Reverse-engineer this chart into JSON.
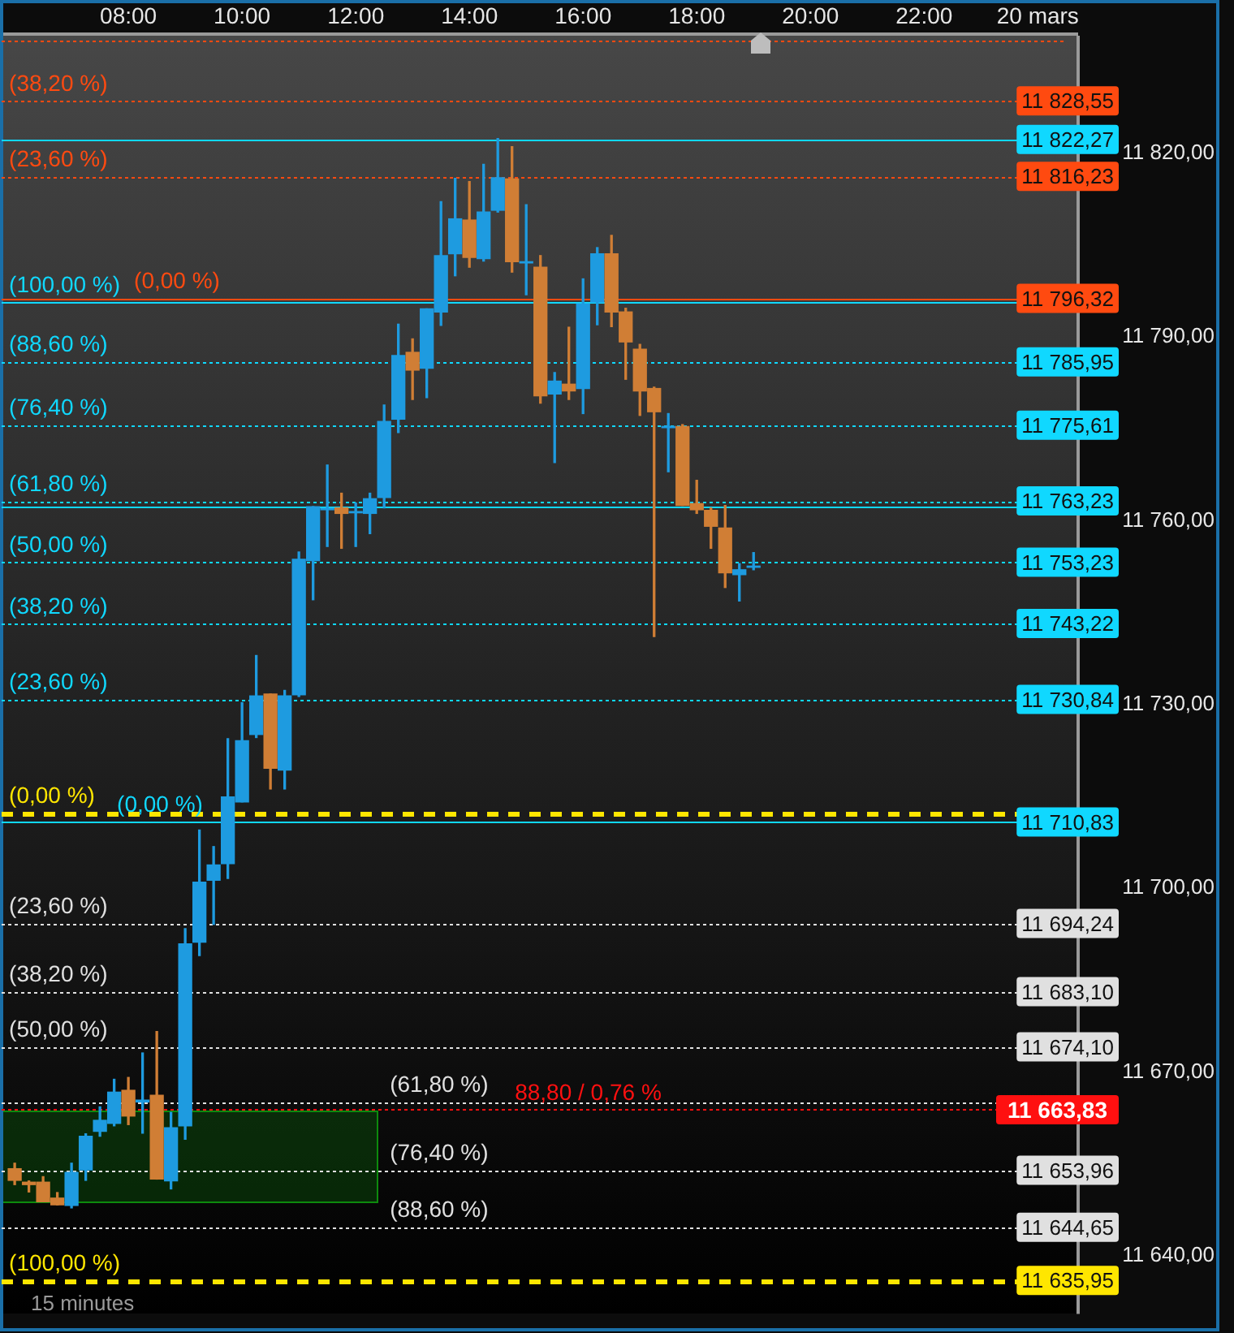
{
  "chart_data": {
    "type": "candlestick",
    "x": [
      6,
      6.25,
      6.5,
      6.75,
      7,
      7.25,
      7.5,
      7.75,
      8,
      8.25,
      8.5,
      8.75,
      9,
      9.25,
      9.5,
      9.75,
      10,
      10.25,
      10.5,
      10.75,
      11,
      11.25,
      11.5,
      11.75,
      12,
      12.25,
      12.5,
      12.75,
      13,
      13.25,
      13.5,
      13.75,
      14,
      14.25,
      14.5,
      14.75,
      15,
      15.25,
      15.5,
      15.75,
      16,
      16.25,
      16.5,
      16.75,
      17,
      17.25,
      17.5,
      17.75,
      18,
      18.25,
      18.5,
      18.75,
      19
    ],
    "ohlc": [
      [
        11654.2,
        11655.1,
        11651.6,
        11652.3
      ],
      [
        11652.0,
        11652.2,
        11650.4,
        11651.6
      ],
      [
        11652.0,
        11652.9,
        11648.8,
        11648.8
      ],
      [
        11649.4,
        11650.3,
        11648.3,
        11648.3
      ],
      [
        11648.2,
        11655.1,
        11647.8,
        11653.6
      ],
      [
        11654.0,
        11659.9,
        11652.3,
        11659.5
      ],
      [
        11660.3,
        11664.3,
        11659.5,
        11662.1
      ],
      [
        11661.6,
        11668.8,
        11661.2,
        11666.7
      ],
      [
        11667.0,
        11669.1,
        11661.4,
        11662.8
      ],
      [
        11665.1,
        11673.1,
        11660.0,
        11665.4
      ],
      [
        11666.2,
        11676.6,
        11652.5,
        11652.5
      ],
      [
        11652.2,
        11663.4,
        11650.9,
        11660.9
      ],
      [
        11661.2,
        11693.4,
        11659.0,
        11690.9
      ],
      [
        11691.2,
        11709.5,
        11689.0,
        11701.0
      ],
      [
        11701.3,
        11706.8,
        11694.1,
        11703.8
      ],
      [
        11704.0,
        11724.4,
        11701.6,
        11714.9
      ],
      [
        11714.1,
        11730.3,
        11714.1,
        11724.1
      ],
      [
        11725.1,
        11738.0,
        11724.6,
        11731.4
      ],
      [
        11731.7,
        11731.7,
        11716.2,
        11719.6
      ],
      [
        11719.3,
        11732.3,
        11716.2,
        11731.4
      ],
      [
        11731.6,
        11754.9,
        11731.3,
        11753.7
      ],
      [
        11753.5,
        11762.3,
        11747.1,
        11762.3
      ],
      [
        11761.8,
        11769.1,
        11755.8,
        11762.0
      ],
      [
        11762.1,
        11764.5,
        11755.5,
        11761.2
      ],
      [
        11761.3,
        11762.9,
        11755.8,
        11761.5
      ],
      [
        11761.2,
        11764.5,
        11757.9,
        11763.6
      ],
      [
        11763.8,
        11778.9,
        11762.1,
        11776.2
      ],
      [
        11776.6,
        11792.1,
        11774.4,
        11787.0
      ],
      [
        11787.5,
        11789.7,
        11779.8,
        11784.6
      ],
      [
        11784.9,
        11794.6,
        11780.1,
        11794.6
      ],
      [
        11794.1,
        11812.1,
        11791.9,
        11803.3
      ],
      [
        11803.6,
        11815.9,
        11800.0,
        11809.3
      ],
      [
        11809.1,
        11815.4,
        11801.4,
        11803.0
      ],
      [
        11802.8,
        11818.2,
        11802.4,
        11810.4
      ],
      [
        11810.7,
        11822.4,
        11810.4,
        11816.0
      ],
      [
        11815.8,
        11821.1,
        11800.6,
        11802.3
      ],
      [
        11802.1,
        11811.6,
        11796.9,
        11802.3
      ],
      [
        11801.4,
        11803.3,
        11779.2,
        11780.4
      ],
      [
        11780.7,
        11784.2,
        11769.5,
        11782.8
      ],
      [
        11782.3,
        11791.6,
        11779.8,
        11781.2
      ],
      [
        11781.6,
        11799.5,
        11777.5,
        11795.4
      ],
      [
        11795.7,
        11804.6,
        11792.0,
        11803.6
      ],
      [
        11803.6,
        11806.6,
        11791.7,
        11794.1
      ],
      [
        11794.1,
        11794.7,
        11783.1,
        11789.2
      ],
      [
        11788.0,
        11788.8,
        11777.2,
        11781.2
      ],
      [
        11781.6,
        11781.8,
        11741.1,
        11777.8
      ],
      [
        11775.2,
        11777.5,
        11768.0,
        11775.4
      ],
      [
        11775.4,
        11775.7,
        11762.5,
        11762.5
      ],
      [
        11762.8,
        11766.6,
        11761.2,
        11761.8
      ],
      [
        11761.7,
        11762.1,
        11755.5,
        11759.1
      ],
      [
        11758.8,
        11762.5,
        11749.1,
        11751.5
      ],
      [
        11751.2,
        11753.0,
        11746.9,
        11752.0
      ],
      [
        11752.4,
        11754.8,
        11752.0,
        11752.6
      ]
    ],
    "colors": [
      "#d07e35",
      "#d07e35",
      "#d07e35",
      "#d07e35",
      "#1e9be0",
      "#1e9be0",
      "#1e9be0",
      "#1e9be0",
      "#d07e35",
      "#1e9be0",
      "#d07e35",
      "#1e9be0",
      "#1e9be0",
      "#1e9be0",
      "#1e9be0",
      "#1e9be0",
      "#1e9be0",
      "#1e9be0",
      "#d07e35",
      "#1e9be0",
      "#1e9be0",
      "#1e9be0",
      "#1e9be0",
      "#d07e35",
      "#1e9be0",
      "#1e9be0",
      "#1e9be0",
      "#1e9be0",
      "#d07e35",
      "#1e9be0",
      "#1e9be0",
      "#1e9be0",
      "#d07e35",
      "#1e9be0",
      "#1e9be0",
      "#d07e35",
      "#1e9be0",
      "#d07e35",
      "#1e9be0",
      "#d07e35",
      "#1e9be0",
      "#1e9be0",
      "#d07e35",
      "#d07e35",
      "#d07e35",
      "#d07e35",
      "#1e9be0",
      "#d07e35",
      "#d07e35",
      "#d07e35",
      "#d07e35",
      "#1e9be0",
      "#1e9be0"
    ],
    "xlim": [
      5.77,
      24.71
    ],
    "xticks": [
      {
        "value": 8,
        "label": "08:00"
      },
      {
        "value": 10,
        "label": "10:00"
      },
      {
        "value": 12,
        "label": "12:00"
      },
      {
        "value": 14,
        "label": "14:00"
      },
      {
        "value": 16,
        "label": "16:00"
      },
      {
        "value": 18,
        "label": "18:00"
      },
      {
        "value": 20,
        "label": "20:00"
      },
      {
        "value": 22,
        "label": "22:00"
      },
      {
        "value": 24,
        "label": "20 mars"
      }
    ],
    "ylim": [
      11630.5,
      11839.2
    ],
    "yticks": [
      {
        "value": 11640,
        "label": "11 640,00"
      },
      {
        "value": 11670,
        "label": "11 670,00"
      },
      {
        "value": 11700,
        "label": "11 700,00"
      },
      {
        "value": 11730,
        "label": "11 730,00"
      },
      {
        "value": 11760,
        "label": "11 760,00"
      },
      {
        "value": 11790,
        "label": "11 790,00"
      },
      {
        "value": 11820,
        "label": "11 820,00"
      }
    ],
    "ref_lines": [
      {
        "axis": "y",
        "value": 11838.4,
        "color": "#ff4a10",
        "line_style": "dotted"
      },
      {
        "axis": "y",
        "value": 11828.55,
        "label": "11 828,55",
        "color": "#ff4a10",
        "line_style": "dotted"
      },
      {
        "axis": "y",
        "value": 11822.27,
        "label": "11 822,27",
        "color": "#10d8ff",
        "line_style": "solid"
      },
      {
        "axis": "y",
        "value": 11816.23,
        "label": "11 816,23",
        "color": "#ff4a10",
        "line_style": "dotted"
      },
      {
        "axis": "y",
        "value": 11795.63,
        "color": "#10d8ff",
        "line_style": "solid"
      },
      {
        "axis": "y",
        "value": 11796.32,
        "label": "11 796,32",
        "color": "#ff4a10",
        "line_style": "solid"
      },
      {
        "axis": "y",
        "value": 11785.95,
        "label": "11 785,95",
        "color": "#10d8ff",
        "line_style": "dotted"
      },
      {
        "axis": "y",
        "value": 11775.61,
        "label": "11 775,61",
        "color": "#10d8ff",
        "line_style": "dotted"
      },
      {
        "axis": "y",
        "value": 11763.23,
        "label": "11 763,23",
        "color": "#10d8ff",
        "line_style": "dotted"
      },
      {
        "axis": "y",
        "value": 11762.4,
        "color": "#10d8ff",
        "line_style": "solid"
      },
      {
        "axis": "y",
        "value": 11753.23,
        "label": "11 753,23",
        "color": "#10d8ff",
        "line_style": "dotted"
      },
      {
        "axis": "y",
        "value": 11743.22,
        "label": "11 743,22",
        "color": "#10d8ff",
        "line_style": "dotted"
      },
      {
        "axis": "y",
        "value": 11730.84,
        "label": "11 730,84",
        "color": "#10d8ff",
        "line_style": "dotted"
      },
      {
        "axis": "y",
        "value": 11712.25,
        "color": "#ffe600",
        "line_style": "dashed"
      },
      {
        "axis": "y",
        "value": 11710.83,
        "label": "11 710,83",
        "color": "#10d8ff",
        "line_style": "solid"
      },
      {
        "axis": "y",
        "value": 11694.24,
        "label": "11 694,24",
        "color": "#e0e0e0",
        "line_style": "dotted"
      },
      {
        "axis": "y",
        "value": 11683.1,
        "label": "11 683,10",
        "color": "#e0e0e0",
        "line_style": "dotted"
      },
      {
        "axis": "y",
        "value": 11674.1,
        "label": "11 674,10",
        "color": "#e0e0e0",
        "line_style": "dotted"
      },
      {
        "axis": "y",
        "value": 11665.1,
        "color": "#e0e0e0",
        "line_style": "dotted"
      },
      {
        "axis": "y",
        "value": 11663.83,
        "label": "11 663,83",
        "color": "#ff1010",
        "line_style": "dotted"
      },
      {
        "axis": "y",
        "value": 11653.96,
        "label": "11 653,96",
        "color": "#e0e0e0",
        "line_style": "dotted"
      },
      {
        "axis": "y",
        "value": 11644.65,
        "label": "11 644,65",
        "color": "#e0e0e0",
        "line_style": "dotted"
      },
      {
        "axis": "y",
        "value": 11635.95,
        "label": "11 635,95",
        "color": "#ffe600",
        "line_style": "dashed"
      }
    ],
    "annotations": [
      "15 minutes",
      {
        "text": "(38,20 %)",
        "x": 5.9,
        "y": 11828.55
      },
      {
        "text": "(23,60 %)",
        "x": 5.9,
        "y": 11816.23
      },
      {
        "text": "(100,00 %)",
        "x": 5.9,
        "y": 11795.63
      },
      {
        "text": "(0,00 %)",
        "x": 8.1,
        "y": 11796.32
      },
      {
        "text": "(88,60 %)",
        "x": 5.9,
        "y": 11785.95
      },
      {
        "text": "(76,40 %)",
        "x": 5.9,
        "y": 11775.61
      },
      {
        "text": "(61,80 %)",
        "x": 5.9,
        "y": 11763.23
      },
      {
        "text": "(50,00 %)",
        "x": 5.9,
        "y": 11753.23
      },
      {
        "text": "(38,20 %)",
        "x": 5.9,
        "y": 11743.22
      },
      {
        "text": "(23,60 %)",
        "x": 5.9,
        "y": 11730.84
      },
      {
        "text": "(0,00 %)",
        "x": 5.9,
        "y": 11712.25
      },
      {
        "text": "(0,00 %)",
        "x": 7.8,
        "y": 11710.83
      },
      {
        "text": "(23,60 %)",
        "x": 5.9,
        "y": 11694.24
      },
      {
        "text": "(38,20 %)",
        "x": 5.9,
        "y": 11683.1
      },
      {
        "text": "(50,00 %)",
        "x": 5.9,
        "y": 11674.1
      },
      {
        "text": "(61,80 %)",
        "x": 12.6,
        "y": 11665.1
      },
      {
        "text": "88,80 / 0,76 %",
        "x": 14.8,
        "y": 11663.83
      },
      {
        "text": "(76,40 %)",
        "x": 12.6,
        "y": 11653.96
      },
      {
        "text": "(88,60 %)",
        "x": 12.6,
        "y": 11644.65
      },
      {
        "text": "(100,00 %)",
        "x": 5.9,
        "y": 11635.95
      }
    ]
  }
}
